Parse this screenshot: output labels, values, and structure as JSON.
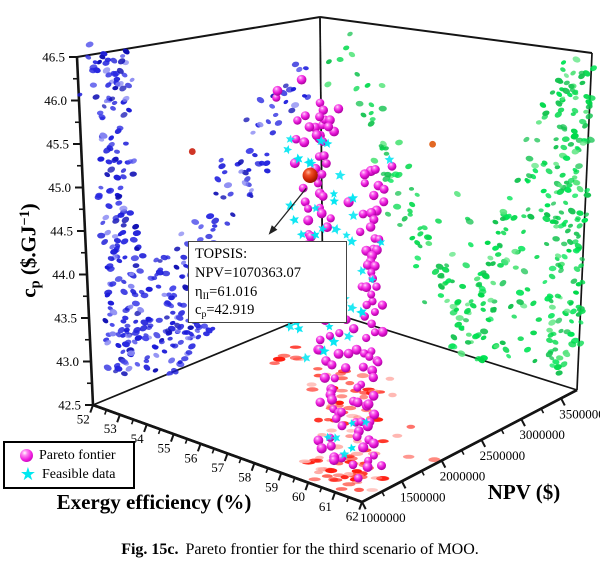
{
  "figure": {
    "caption_label": "Fig. 15c.",
    "caption_text": "Pareto frontier for the third scenario of MOO."
  },
  "legend": {
    "items": [
      {
        "label": "Pareto fontier",
        "marker": "sphere-icon",
        "color": "#ee18dd"
      },
      {
        "label": "Feasible data",
        "marker": "star-icon",
        "color": "#00e8f0"
      }
    ]
  },
  "annotation": {
    "lines": [
      {
        "text": "TOPSIS:"
      },
      {
        "text": "NPV=1070363.07"
      },
      {
        "base": "η",
        "sub": "II",
        "rest": "=61.016"
      },
      {
        "base": "c",
        "sub": "p",
        "rest": "=42.919"
      }
    ]
  },
  "chart_data": {
    "type": "scatter",
    "projection": "3d",
    "seed": 1337,
    "axes": {
      "x": {
        "title": "Exergy efficiency (%)",
        "min": 52,
        "max": 62,
        "major_ticks": [
          52,
          53,
          54,
          55,
          56,
          57,
          58,
          59,
          60,
          61,
          62
        ],
        "minor_step": 0.5
      },
      "y": {
        "title": "NPV ($)",
        "min": 1000000,
        "max": 3700000,
        "major_ticks": [
          1000000,
          1500000,
          2000000,
          2500000,
          3000000,
          3500000
        ],
        "minor_step": 250000
      },
      "z": {
        "title": "cp ($.GJ-1)",
        "title_parts": {
          "base": "c",
          "sub": "p",
          "mid": " ($.GJ",
          "sup": "−1",
          "end": ")"
        },
        "min": 42.5,
        "max": 46.5,
        "major_ticks": [
          42.5,
          43,
          43.5,
          44,
          44.5,
          45,
          45.5,
          46,
          46.5
        ],
        "minor_step": 0.25
      }
    },
    "topsis_point": {
      "npv": 1070363.07,
      "exergy_efficiency": 61.016,
      "cp": 42.919,
      "plot_uvw": [
        0.63,
        0.2,
        0.8
      ],
      "color": "#cc2505"
    },
    "series": [
      {
        "name": "cp-vs-npv projection",
        "wall": "left",
        "marker": "dot",
        "colors": [
          "#1b1bd8",
          "#1b1bd8",
          "#2626e0",
          "#2626e0",
          "#0f0fb4",
          "#4646ea",
          "#8585f2"
        ],
        "clusters": [
          {
            "type": "band",
            "a": [
              0.06,
              0.22
            ],
            "b": [
              0.06,
              1.0
            ],
            "n": 140
          },
          {
            "type": "segment",
            "from": [
              0.25,
              0.1
            ],
            "to": [
              0.88,
              0.78
            ],
            "n": 95,
            "spread": [
              0.045,
              0.05
            ]
          },
          {
            "type": "band",
            "a": [
              0.12,
              0.52
            ],
            "b": [
              0.03,
              0.42
            ],
            "n": 80
          },
          {
            "type": "gauss",
            "mean": [
              0.38,
              0.08
            ],
            "sd": [
              0.09,
              0.05
            ],
            "n": 40
          },
          {
            "type": "gauss",
            "mean": [
              0.12,
              0.93
            ],
            "sd": [
              0.05,
              0.04
            ],
            "n": 25
          }
        ]
      },
      {
        "name": "cp-vs-exergy projection",
        "wall": "right",
        "marker": "dot",
        "colors": [
          "#00d94b",
          "#00d94b",
          "#00e556",
          "#14c350",
          "#14c350",
          "#58e57e"
        ],
        "clusters": [
          {
            "type": "band",
            "a": [
              0.88,
              1.01
            ],
            "b": [
              0.03,
              0.98
            ],
            "n": 150
          },
          {
            "type": "segment",
            "from": [
              0.08,
              0.92
            ],
            "to": [
              0.33,
              0.42
            ],
            "n": 35,
            "spread": [
              0.035,
              0.05
            ]
          },
          {
            "type": "segment",
            "from": [
              0.33,
              0.42
            ],
            "to": [
              0.57,
              0.04
            ],
            "n": 45,
            "spread": [
              0.04,
              0.05
            ]
          },
          {
            "type": "segment",
            "from": [
              0.58,
              0.05
            ],
            "to": [
              0.93,
              0.9
            ],
            "n": 90,
            "spread": [
              0.05,
              0.06
            ]
          },
          {
            "type": "band",
            "a": [
              0.5,
              0.92
            ],
            "b": [
              0.03,
              0.5
            ],
            "n": 55
          }
        ]
      },
      {
        "name": "npv-vs-exergy projection",
        "wall": "floor",
        "marker": "flatdot",
        "colors": [
          "#ff190c",
          "#ff190c",
          "#ff4f40",
          "#ff8a82",
          "#ffb4ae"
        ],
        "clusters": [
          {
            "type": "segment",
            "from": [
              0.16,
              0.68
            ],
            "to": [
              0.52,
              0.55
            ],
            "n": 22,
            "spread": [
              0.05,
              0.06
            ]
          },
          {
            "type": "segment",
            "from": [
              0.52,
              0.55
            ],
            "to": [
              0.85,
              0.14
            ],
            "n": 48,
            "spread": [
              0.05,
              0.07
            ]
          },
          {
            "type": "gauss",
            "mean": [
              0.84,
              0.15
            ],
            "sd": [
              0.06,
              0.07
            ],
            "n": 35
          }
        ]
      },
      {
        "name": "Pareto frontier",
        "wall": "interior",
        "marker": "sphere",
        "color": "#e613d6",
        "clusters": [
          {
            "type": "chain",
            "u0": 0.8,
            "udrift": -0.13,
            "usd": 0.018,
            "v": 0.14,
            "vsd": 0.035,
            "w": [
              0.02,
              1.0
            ],
            "n": 78
          },
          {
            "type": "chain",
            "u0": 0.935,
            "udrift": -0.02,
            "usd": 0.015,
            "v": 0.1,
            "vsd": 0.03,
            "w": [
              0.03,
              0.94
            ],
            "n": 72
          },
          {
            "type": "blob3d",
            "mean": [
              0.55,
              0.28,
              0.95
            ],
            "sd": [
              0.08,
              0.06,
              0.03
            ],
            "n": 14
          }
        ]
      },
      {
        "name": "Feasible data",
        "wall": "interior",
        "marker": "star",
        "color": "#00e6f2",
        "clusters": [
          {
            "type": "blob3d",
            "mean": [
              0.7,
              0.2,
              0.55
            ],
            "sd": [
              0.06,
              0.07,
              0.16
            ],
            "n": 40
          },
          {
            "type": "blob3d",
            "mean": [
              0.66,
              0.12,
              0.88
            ],
            "sd": [
              0.04,
              0.04,
              0.05
            ],
            "n": 8
          },
          {
            "type": "blob3d",
            "mean": [
              0.85,
              0.15,
              0.08
            ],
            "sd": [
              0.05,
              0.05,
              0.04
            ],
            "n": 5
          }
        ]
      }
    ],
    "outlier_points": [
      {
        "wall": "left",
        "a": 0.46,
        "b": 0.65,
        "color": "#cc2a1a"
      },
      {
        "wall": "right",
        "a": 0.42,
        "b": 0.64,
        "color": "#e06018"
      }
    ]
  }
}
